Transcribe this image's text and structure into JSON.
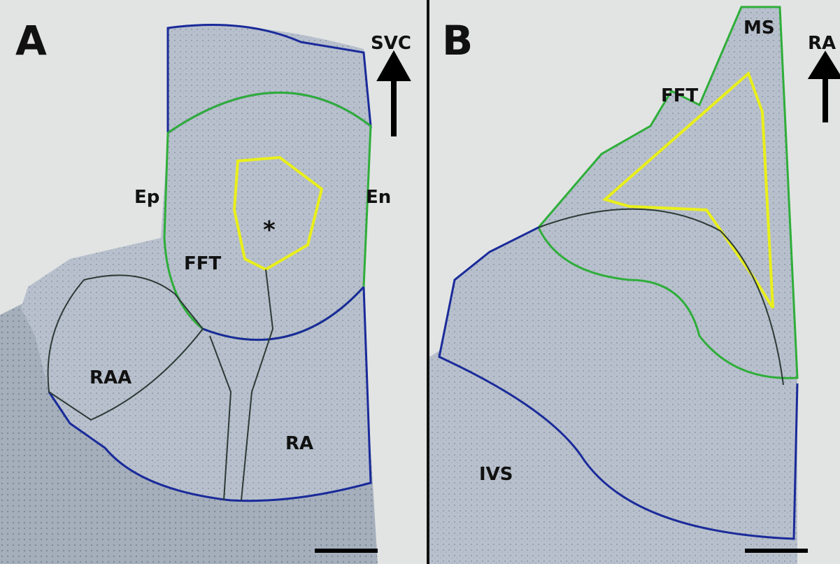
{
  "panels": [
    {
      "label": "A",
      "arrow_label": "SVC",
      "annotations": [
        "Ep",
        "En",
        "FFT",
        "*",
        "RAA",
        "RA"
      ]
    },
    {
      "label": "B",
      "arrow_label": "RA",
      "annotations": [
        "MS",
        "FFT",
        "IVS"
      ]
    }
  ]
}
